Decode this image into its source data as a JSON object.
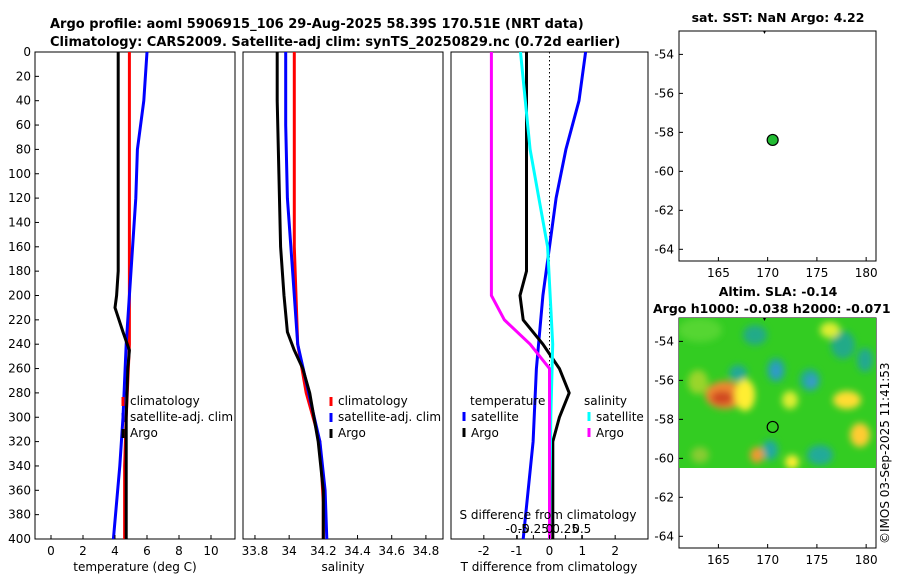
{
  "title_line1": "Argo profile: aoml 5906915_106 29-Aug-2025 58.39S 170.51E (NRT data)",
  "title_line2": "Climatology: CARS2009. Satellite-adj clim: synTS_20250829.nc (0.72d earlier)",
  "sst_title": "sat. SST: NaN Argo: 4.22",
  "sla_title1": "Altim. SLA: -0.14",
  "sla_title2": "Argo h1000: -0.038 h2000: -0.071",
  "watermark": "©IMOS 03-Sep-2025 11:41:53",
  "colors": {
    "climatology": "#ff0000",
    "satellite": "#0000ff",
    "argo": "#000000",
    "salinity": "#00ffff",
    "sal_argo": "#ff00ff"
  },
  "chart_data": [
    {
      "type": "line",
      "name": "temperature-profile",
      "xlabel": "temperature (deg C)",
      "xlim": [
        -1,
        11.5
      ],
      "ylim": [
        400,
        0
      ],
      "xticks": [
        "0",
        "2",
        "4",
        "6",
        "8",
        "10"
      ],
      "yticks": [
        "0",
        "20",
        "40",
        "60",
        "80",
        "100",
        "120",
        "140",
        "160",
        "180",
        "200",
        "220",
        "240",
        "260",
        "280",
        "300",
        "320",
        "340",
        "360",
        "380",
        "400"
      ],
      "legend": [
        "climatology",
        "satellite-adj. clim",
        "Argo"
      ],
      "series": [
        {
          "name": "climatology",
          "color": "red",
          "depth": [
            0,
            60,
            160,
            240,
            300,
            340,
            400
          ],
          "values": [
            4.9,
            4.9,
            4.9,
            4.9,
            4.7,
            4.6,
            4.6
          ]
        },
        {
          "name": "satellite-adj. clim",
          "color": "blue",
          "depth": [
            0,
            40,
            80,
            120,
            180,
            240,
            300,
            340,
            400
          ],
          "values": [
            6.0,
            5.8,
            5.4,
            5.3,
            5.0,
            4.7,
            4.5,
            4.3,
            3.9
          ]
        },
        {
          "name": "Argo",
          "color": "black",
          "depth": [
            0,
            100,
            180,
            200,
            210,
            230,
            245,
            260,
            300,
            340,
            370,
            400
          ],
          "values": [
            4.2,
            4.2,
            4.2,
            4.1,
            4.0,
            4.5,
            4.9,
            4.8,
            4.7,
            4.7,
            4.7,
            4.7
          ]
        }
      ]
    },
    {
      "type": "line",
      "name": "salinity-profile",
      "xlabel": "salinity",
      "xlim": [
        33.73,
        34.9
      ],
      "ylim": [
        400,
        0
      ],
      "xticks": [
        "33.8",
        "34",
        "34.2",
        "34.4",
        "34.6",
        "34.8"
      ],
      "legend": [
        "climatology",
        "satellite-adj. clim",
        "Argo"
      ],
      "series": [
        {
          "name": "climatology",
          "color": "red",
          "depth": [
            0,
            80,
            160,
            240,
            280,
            320,
            370,
            400
          ],
          "values": [
            34.03,
            34.03,
            34.03,
            34.05,
            34.1,
            34.18,
            34.2,
            34.2
          ]
        },
        {
          "name": "satellite-adj. clim",
          "color": "blue",
          "depth": [
            0,
            60,
            120,
            180,
            240,
            290,
            320,
            360,
            400
          ],
          "values": [
            33.98,
            33.98,
            33.99,
            34.02,
            34.05,
            34.13,
            34.18,
            34.21,
            34.22
          ]
        },
        {
          "name": "Argo",
          "color": "black",
          "depth": [
            0,
            40,
            100,
            160,
            200,
            230,
            245,
            260,
            280,
            320,
            360,
            400
          ],
          "values": [
            33.93,
            33.93,
            33.94,
            33.95,
            33.97,
            33.99,
            34.03,
            34.08,
            34.12,
            34.17,
            34.2,
            34.2
          ]
        }
      ]
    },
    {
      "type": "line",
      "name": "difference-profile",
      "xlabel": "T difference from climatology",
      "top_label": "S difference from climatology",
      "xlim": [
        -3,
        3
      ],
      "ylim": [
        400,
        0
      ],
      "xticks": [
        "-2",
        "-1",
        "0",
        "1",
        "2"
      ],
      "top_ticks": [
        "-0.5",
        "-0.25",
        "0",
        "0.25",
        "0.5"
      ],
      "legend_temperature": "temperature",
      "legend_salinity": "salinity",
      "legend_items": [
        "satellite",
        "Argo"
      ],
      "series": [
        {
          "name": "T satellite",
          "color": "blue",
          "depth": [
            0,
            20,
            40,
            80,
            120,
            200,
            260,
            320,
            400
          ],
          "values": [
            1.1,
            1.0,
            0.9,
            0.5,
            0.2,
            -0.2,
            -0.4,
            -0.5,
            -0.8
          ]
        },
        {
          "name": "T Argo",
          "color": "black",
          "depth": [
            0,
            100,
            180,
            200,
            220,
            240,
            260,
            280,
            300,
            320,
            400
          ],
          "values": [
            -0.7,
            -0.7,
            -0.7,
            -0.9,
            -0.8,
            -0.2,
            0.3,
            0.6,
            0.3,
            0.1,
            0.1
          ]
        },
        {
          "name": "S satellite",
          "color": "cyan",
          "depth": [
            0,
            80,
            160,
            240,
            300,
            400
          ],
          "values": [
            -0.45,
            -0.3,
            -0.03,
            0.05,
            0.02,
            0.0
          ]
        },
        {
          "name": "S Argo",
          "color": "magenta",
          "depth": [
            0,
            80,
            160,
            200,
            220,
            240,
            260,
            300,
            360,
            400
          ],
          "values": [
            -0.9,
            -0.9,
            -0.9,
            -0.9,
            -0.7,
            -0.3,
            0.0,
            0.0,
            0.0,
            0.0
          ]
        }
      ]
    },
    {
      "type": "scatter",
      "name": "sst-map",
      "title": "sat. SST: NaN Argo: 4.22",
      "xlim": [
        161,
        181
      ],
      "ylim": [
        -64.6,
        -52.8
      ],
      "xticks": [
        "165",
        "170",
        "175",
        "180"
      ],
      "yticks": [
        "-54",
        "-56",
        "-58",
        "-60",
        "-62",
        "-64"
      ],
      "points": [
        {
          "lon": 170.51,
          "lat": -58.39
        }
      ]
    },
    {
      "type": "heatmap",
      "name": "sla-map",
      "title": "Altim. SLA: -0.14",
      "xlim": [
        161,
        181
      ],
      "ylim": [
        -64.6,
        -52.8
      ],
      "xticks": [
        "165",
        "170",
        "175",
        "180"
      ],
      "yticks": [
        "-54",
        "-56",
        "-58",
        "-60",
        "-62",
        "-64"
      ],
      "data_lat_range": [
        -60,
        -52.8
      ],
      "points": [
        {
          "lon": 170.51,
          "lat": -58.39
        }
      ]
    }
  ]
}
